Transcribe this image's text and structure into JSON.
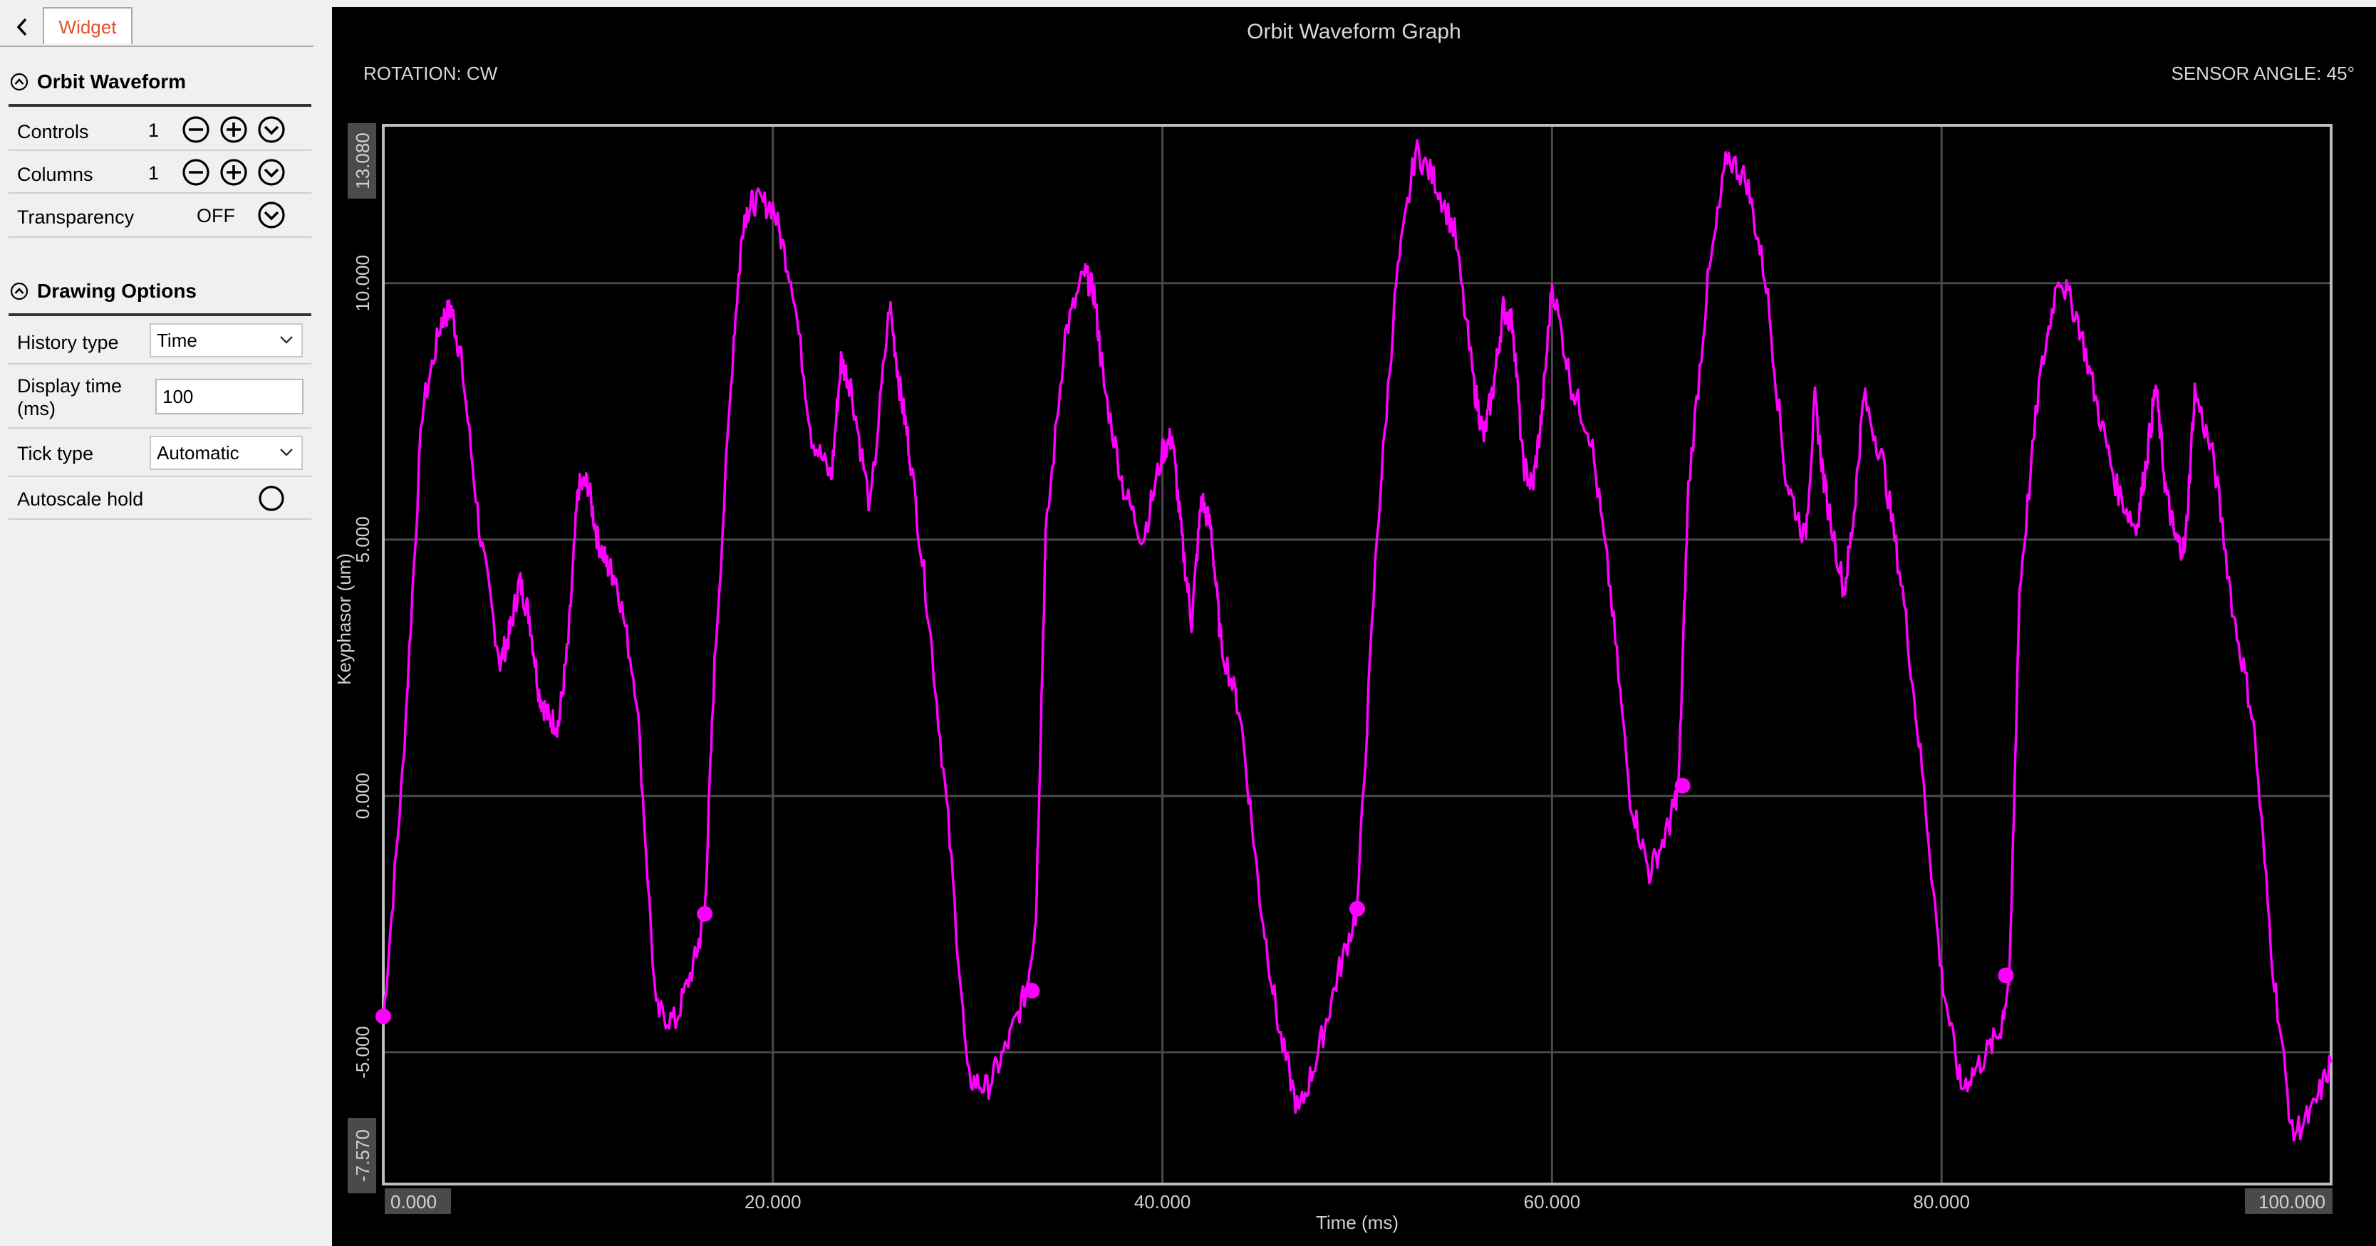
{
  "sidebar": {
    "tab_label": "Widget",
    "sections": [
      {
        "title": "Orbit Waveform",
        "rows": [
          {
            "label": "Controls",
            "value": "1"
          },
          {
            "label": "Columns",
            "value": "1"
          },
          {
            "label": "Transparency",
            "value": "OFF"
          }
        ]
      },
      {
        "title": "Drawing Options",
        "rows": [
          {
            "label": "History type",
            "value": "Time"
          },
          {
            "label": "Display time\n(ms)",
            "value": "100"
          },
          {
            "label": "Tick type",
            "value": "Automatic"
          },
          {
            "label": "Autoscale hold",
            "value": ""
          }
        ]
      }
    ]
  },
  "graph": {
    "title": "Orbit Waveform Graph",
    "rotation": "ROTATION: CW",
    "sensor_angle": "SENSOR ANGLE: 45°"
  },
  "colors": {
    "trace": "#ff00ff",
    "grid": "#4a4a4a",
    "frame": "#bdbdbd",
    "accent_tab": "#e0502a"
  },
  "chart_data": {
    "type": "line",
    "title": "Orbit Waveform Graph",
    "xlabel": "Time (ms)",
    "ylabel": "Keyphasor (um)",
    "xlim": [
      0,
      100
    ],
    "ylim": [
      -7.57,
      13.08
    ],
    "x_ticks": [
      "0.000",
      "20.000",
      "40.000",
      "60.000",
      "80.000",
      "100.000"
    ],
    "y_ticks": [
      "13.080",
      "10.000",
      "5.000",
      "0.000",
      "-5.000",
      "-7.570"
    ],
    "grid": true,
    "series": [
      {
        "x": [
          0,
          1,
          2,
          3,
          3.5,
          4,
          5,
          6,
          6.5,
          7,
          7.5,
          8,
          8.5,
          9,
          9.5,
          10,
          10.5,
          11,
          11.5,
          12,
          13,
          14,
          15,
          16,
          16.5,
          17,
          18,
          18.5,
          19,
          20,
          21,
          22,
          23,
          23.5,
          24,
          25,
          26,
          26.5,
          27,
          28,
          29,
          30,
          31,
          32,
          33,
          33.5,
          34,
          35,
          36,
          36.5,
          37,
          38,
          39,
          40,
          40.5,
          41,
          41.5,
          42,
          42.5,
          43,
          44,
          45,
          46,
          47,
          48,
          49,
          50,
          51,
          52,
          53,
          54,
          55,
          56,
          56.5,
          57,
          57.5,
          58,
          58.5,
          59,
          59.5,
          60,
          61,
          62,
          63,
          64,
          65,
          66,
          66.5,
          67,
          68,
          69,
          70,
          71,
          72,
          73,
          73.5,
          74,
          75,
          75.5,
          76,
          77,
          78,
          79,
          80,
          81,
          82,
          83,
          83.5,
          84,
          85,
          86,
          87,
          88,
          89,
          90,
          90.5,
          91,
          91.5,
          92,
          92.5,
          93,
          94,
          95,
          96,
          97,
          98,
          99,
          100
        ],
        "y": [
          -4.4,
          0.5,
          7.5,
          9.3,
          9.5,
          8.5,
          5.0,
          2.6,
          3.2,
          4.2,
          3.5,
          2.0,
          1.5,
          1.4,
          3.0,
          6.0,
          6.1,
          5.0,
          4.5,
          4.2,
          2.0,
          -4.2,
          -4.4,
          -3.2,
          -2.3,
          2.5,
          9.0,
          11.3,
          11.6,
          11.5,
          10.0,
          7.0,
          6.2,
          8.5,
          8.0,
          5.6,
          9.6,
          8.0,
          6.8,
          3.5,
          -0.5,
          -5.5,
          -5.7,
          -4.9,
          -3.8,
          -2.4,
          5.0,
          9.0,
          10.2,
          9.8,
          8.0,
          6.0,
          5.0,
          6.7,
          7.0,
          5.0,
          3.4,
          5.8,
          5.2,
          3.0,
          1.6,
          -2.0,
          -4.6,
          -6.2,
          -5.0,
          -3.5,
          -2.2,
          5.0,
          10.0,
          12.6,
          12.0,
          11.0,
          8.0,
          7.0,
          8.0,
          9.5,
          9.2,
          6.5,
          6.0,
          7.5,
          10.0,
          8.0,
          7.0,
          4.0,
          0.0,
          -1.5,
          -0.6,
          0.2,
          6.0,
          10.0,
          12.5,
          12.0,
          10.0,
          6.2,
          5.0,
          7.7,
          6.0,
          4.0,
          5.5,
          7.8,
          6.5,
          4.0,
          0.5,
          -3.5,
          -5.7,
          -5.2,
          -4.6,
          -3.5,
          4.0,
          8.0,
          10.2,
          9.3,
          7.6,
          6.0,
          5.2,
          6.5,
          8.0,
          6.0,
          5.0,
          4.8,
          7.9,
          6.5,
          3.5,
          1.5,
          -3.3,
          -6.6,
          -6.2,
          -5.2
        ]
      }
    ],
    "markers": [
      {
        "x": 0.0,
        "y": -4.3
      },
      {
        "x": 16.5,
        "y": -2.3
      },
      {
        "x": 33.3,
        "y": -3.8
      },
      {
        "x": 50.0,
        "y": -2.2
      },
      {
        "x": 66.7,
        "y": 0.2
      },
      {
        "x": 83.3,
        "y": -3.5
      }
    ]
  }
}
